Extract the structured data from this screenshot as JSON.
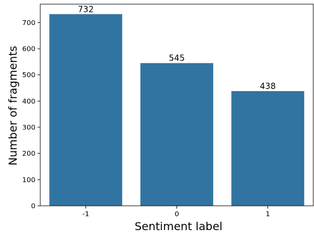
{
  "chart_data": {
    "type": "bar",
    "categories": [
      "-1",
      "0",
      "1"
    ],
    "values": [
      732,
      545,
      438
    ],
    "data_labels": [
      "732",
      "545",
      "438"
    ],
    "title": "",
    "xlabel": "Sentiment label",
    "ylabel": "Number of fragments",
    "ylim": [
      0,
      770
    ],
    "yticks": [
      0,
      100,
      200,
      300,
      400,
      500,
      600,
      700
    ],
    "grid": false,
    "legend": "none",
    "bar_color": "#3274a1"
  }
}
